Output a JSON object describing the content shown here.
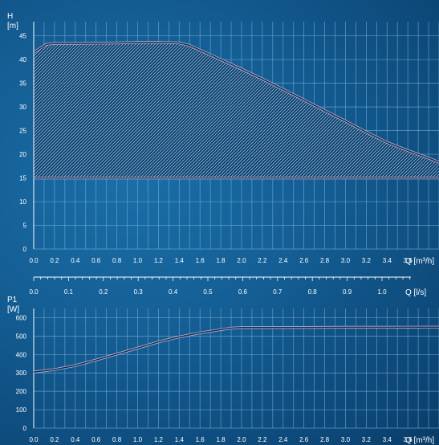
{
  "chart_data": [
    {
      "type": "area",
      "ylabel_name": "H",
      "ylabel_unit": "[m]",
      "xlabel": "Q [m³/h]",
      "xlim": [
        0,
        3.9
      ],
      "ylim": [
        0,
        48
      ],
      "xticks": [
        0.0,
        0.2,
        0.4,
        0.6,
        0.8,
        1.0,
        1.2,
        1.4,
        1.6,
        1.8,
        2.0,
        2.2,
        2.4,
        2.6,
        2.8,
        3.0,
        3.2,
        3.4,
        3.6
      ],
      "xtick_labels": [
        "0.0",
        "0.2",
        "0.4",
        "0.6",
        "0.8",
        "1.0",
        "1.2",
        "1.4",
        "1.6",
        "1.8",
        "2.0",
        "2.2",
        "2.4",
        "2.6",
        "2.8",
        "3.0",
        "3.2",
        "3.4",
        "3.6"
      ],
      "yticks": [
        0,
        5,
        10,
        15,
        20,
        25,
        30,
        35,
        40,
        45
      ],
      "ytick_labels": [
        "0",
        "5",
        "10",
        "15",
        "20",
        "25",
        "30",
        "35",
        "40",
        "45"
      ],
      "grid": true,
      "series": [
        {
          "role": "max-curve",
          "x": [
            0.0,
            0.05,
            0.12,
            0.2,
            0.4,
            0.8,
            1.0,
            1.2,
            1.4,
            1.5,
            1.6,
            1.8,
            2.0,
            2.2,
            2.4,
            2.6,
            2.8,
            3.0,
            3.2,
            3.4,
            3.6,
            3.8,
            3.96
          ],
          "y": [
            41.5,
            42.2,
            43.2,
            43.4,
            43.4,
            43.5,
            43.6,
            43.6,
            43.5,
            43.0,
            42.0,
            40.0,
            38.0,
            35.9,
            33.7,
            31.5,
            29.2,
            27.0,
            24.7,
            22.5,
            20.8,
            19.2,
            17.8
          ]
        },
        {
          "role": "min-curve",
          "x": [
            0.0,
            3.96
          ],
          "y": [
            15.0,
            15.0
          ]
        }
      ]
    },
    {
      "type": "axis",
      "xlabel": "Q [l/s]",
      "xlim": [
        0,
        1.083
      ],
      "xticks": [
        0.0,
        0.1,
        0.2,
        0.3,
        0.4,
        0.5,
        0.6,
        0.7,
        0.8,
        0.9,
        1.0
      ],
      "xtick_labels": [
        "0.0",
        "0.1",
        "0.2",
        "0.3",
        "0.4",
        "0.5",
        "0.6",
        "0.7",
        "0.8",
        "0.9",
        "1.0"
      ]
    },
    {
      "type": "line",
      "ylabel_name": "P1",
      "ylabel_unit": "[W]",
      "xlabel": "Q [m³/h]",
      "xlim": [
        0,
        3.9
      ],
      "ylim": [
        0,
        650
      ],
      "xticks": [
        0.0,
        0.2,
        0.4,
        0.6,
        0.8,
        1.0,
        1.2,
        1.4,
        1.6,
        1.8,
        2.0,
        2.2,
        2.4,
        2.6,
        2.8,
        3.0,
        3.2,
        3.4,
        3.6
      ],
      "xtick_labels": [
        "0.0",
        "0.2",
        "0.4",
        "0.6",
        "0.8",
        "1.0",
        "1.2",
        "1.4",
        "1.6",
        "1.8",
        "2.0",
        "2.2",
        "2.4",
        "2.6",
        "2.8",
        "3.0",
        "3.2",
        "3.4",
        "3.6"
      ],
      "yticks": [
        0,
        100,
        200,
        300,
        400,
        500,
        600
      ],
      "ytick_labels": [
        "0",
        "100",
        "200",
        "300",
        "400",
        "500",
        "600"
      ],
      "grid": true,
      "series": [
        {
          "x": [
            0.0,
            0.2,
            0.4,
            0.6,
            0.8,
            1.0,
            1.2,
            1.4,
            1.6,
            1.8,
            1.9,
            2.0,
            2.2,
            2.6,
            3.0,
            3.4,
            3.8,
            3.96
          ],
          "y": [
            305,
            318,
            340,
            370,
            402,
            435,
            468,
            495,
            518,
            535,
            543,
            546,
            546,
            547,
            548,
            548,
            549,
            549
          ]
        }
      ]
    }
  ],
  "colors": {
    "grid": "#7ab3da",
    "curve": "#17284a",
    "curve_glow": "#d8c9e8",
    "fill": "#0b3d69",
    "hatch": "#b9d6ee",
    "text": "#ffffff"
  }
}
